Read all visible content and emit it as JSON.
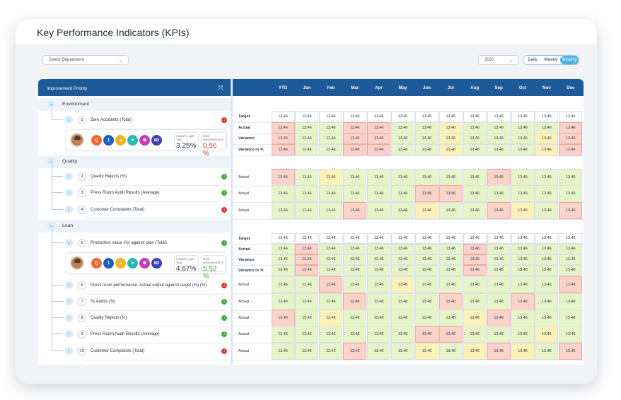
{
  "header": {
    "title": "Key Performance Indicators (KPIs)"
  },
  "filters": {
    "department": "Select Department",
    "year": "2020",
    "views": [
      "Daily",
      "Weekly",
      "Monthly"
    ],
    "active_view": "Monthly"
  },
  "table": {
    "left_header": "Improvement Priority",
    "columns": [
      "YTD",
      "Jan",
      "Feb",
      "Mar",
      "Apr",
      "May",
      "Jun",
      "Jul",
      "Aug",
      "Sep",
      "Oct",
      "Nov",
      "Dec"
    ],
    "cell_value": "13.46"
  },
  "groups": [
    {
      "label": "Environment",
      "items": [
        {
          "num": "1",
          "label": "Zero Accidents (Total)",
          "trend": "down",
          "expanded": true,
          "actual_label": "Actual % Last Year",
          "actual_value": "3.25%",
          "goal_label": "Goal improvement %",
          "goal_value": "0.56 %",
          "goal_color": "#d93a3a",
          "rows": [
            {
              "label": "Target",
              "status": [
                "w",
                "w",
                "w",
                "w",
                "w",
                "w",
                "w",
                "w",
                "w",
                "w",
                "w",
                "w",
                "w"
              ]
            },
            {
              "label": "Actual",
              "status": [
                "r",
                "g",
                "g",
                "r",
                "r",
                "g",
                "g",
                "y",
                "g",
                "g",
                "g",
                "g",
                "r"
              ]
            },
            {
              "label": "Variance",
              "status": [
                "r",
                "g",
                "g",
                "r",
                "r",
                "g",
                "g",
                "y",
                "g",
                "g",
                "g",
                "y",
                "r"
              ]
            },
            {
              "label": "Variance in %",
              "status": [
                "r",
                "g",
                "g",
                "r",
                "r",
                "g",
                "g",
                "y",
                "g",
                "g",
                "g",
                "y",
                "r"
              ]
            }
          ]
        }
      ]
    },
    {
      "label": "Quality",
      "items": [
        {
          "num": "2",
          "label": "Quality Rejects (%)",
          "trend": "up",
          "rows": [
            {
              "label": "Actual",
              "status": [
                "r",
                "g",
                "y",
                "g",
                "g",
                "g",
                "g",
                "g",
                "g",
                "r",
                "g",
                "g",
                "g"
              ]
            }
          ]
        },
        {
          "num": "3",
          "label": "Press Room Audit Results (Average)",
          "trend": "up",
          "rows": [
            {
              "label": "Actual",
              "status": [
                "g",
                "g",
                "g",
                "g",
                "g",
                "g",
                "r",
                "r",
                "g",
                "g",
                "g",
                "g",
                "g"
              ]
            }
          ]
        },
        {
          "num": "4",
          "label": "Customer Complaints (Total)",
          "trend": "down",
          "rows": [
            {
              "label": "Actual",
              "status": [
                "g",
                "g",
                "g",
                "r",
                "g",
                "g",
                "y",
                "g",
                "g",
                "r",
                "y",
                "g",
                "r"
              ]
            }
          ]
        }
      ]
    },
    {
      "label": "Lean",
      "items": [
        {
          "num": "5",
          "label": "Production value (%) against plan (Total)",
          "trend": "up",
          "expanded": true,
          "actual_label": "Actual % Last Year",
          "actual_value": "4.67%",
          "goal_label": "Goal improvement %",
          "goal_value": "5.52 %",
          "goal_color": "#3fae47",
          "rows": [
            {
              "label": "Target",
              "status": [
                "w",
                "w",
                "w",
                "w",
                "w",
                "w",
                "w",
                "w",
                "w",
                "w",
                "w",
                "w",
                "w"
              ]
            },
            {
              "label": "Actual",
              "status": [
                "g",
                "r",
                "g",
                "g",
                "g",
                "g",
                "g",
                "g",
                "r",
                "g",
                "g",
                "g",
                "g"
              ]
            },
            {
              "label": "Variance",
              "status": [
                "g",
                "r",
                "g",
                "g",
                "g",
                "g",
                "g",
                "g",
                "r",
                "g",
                "g",
                "g",
                "g"
              ]
            },
            {
              "label": "Variance in %",
              "status": [
                "g",
                "r",
                "g",
                "g",
                "g",
                "g",
                "g",
                "g",
                "r",
                "g",
                "g",
                "g",
                "g"
              ]
            }
          ]
        },
        {
          "num": "6",
          "label": "Press room performance. Actual output against target (%) (%)",
          "trend": "down",
          "rows": [
            {
              "label": "Actual",
              "status": [
                "g",
                "g",
                "r",
                "g",
                "g",
                "y",
                "g",
                "g",
                "g",
                "g",
                "g",
                "g",
                "r"
              ]
            }
          ]
        },
        {
          "num": "7",
          "label": "5s Audits (%)",
          "trend": "up",
          "rows": [
            {
              "label": "Actual",
              "status": [
                "g",
                "g",
                "g",
                "r",
                "g",
                "g",
                "g",
                "r",
                "g",
                "g",
                "r",
                "g",
                "g"
              ]
            }
          ]
        },
        {
          "num": "8",
          "label": "Quality Rejects (%)",
          "trend": "up",
          "rows": [
            {
              "label": "Actual",
              "status": [
                "r",
                "g",
                "y",
                "g",
                "g",
                "g",
                "g",
                "g",
                "y",
                "r",
                "g",
                "g",
                "g"
              ]
            }
          ]
        },
        {
          "num": "9",
          "label": "Press Room Audit Results (Average)",
          "trend": "up",
          "rows": [
            {
              "label": "Actual",
              "status": [
                "g",
                "g",
                "g",
                "g",
                "g",
                "g",
                "r",
                "r",
                "g",
                "g",
                "g",
                "y",
                "g"
              ]
            }
          ]
        },
        {
          "num": "10",
          "label": "Customer Complaints (Total)",
          "trend": "down",
          "rows": [
            {
              "label": "Actual",
              "status": [
                "g",
                "g",
                "g",
                "r",
                "g",
                "g",
                "y",
                "g",
                "y",
                "r",
                "y",
                "g",
                "r"
              ]
            }
          ]
        }
      ]
    }
  ],
  "card_icons": [
    {
      "glyph": "Q",
      "color": "#f0682e",
      "name": "quality-icon"
    },
    {
      "glyph": "1",
      "color": "#1f5fbf",
      "name": "priority-one-icon"
    },
    {
      "glyph": "◂",
      "color": "#f5b324",
      "name": "megaphone-icon"
    },
    {
      "glyph": "✳",
      "color": "#23b8b0",
      "name": "snowflake-icon"
    },
    {
      "glyph": "✺",
      "color": "#c43bbd",
      "name": "burst-icon"
    },
    {
      "glyph": "8D",
      "color": "#3b3fb8",
      "name": "8d-icon"
    }
  ]
}
